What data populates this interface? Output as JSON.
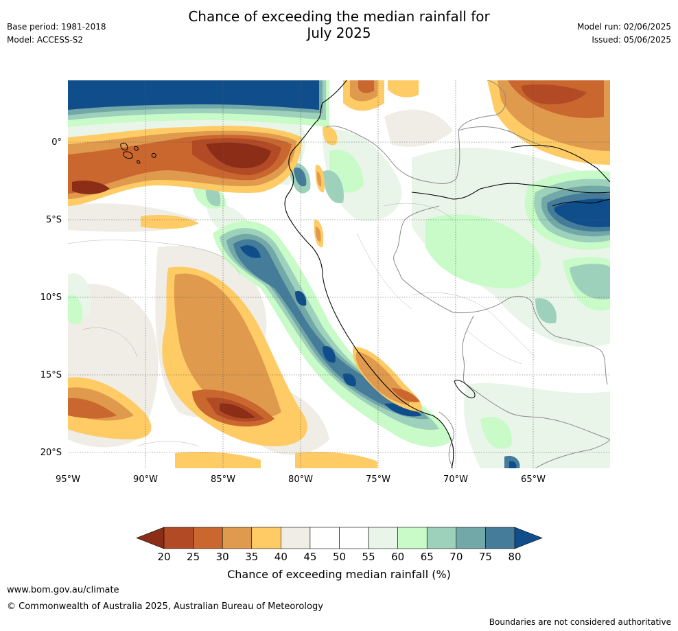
{
  "title": {
    "line1": "Chance of exceeding the median rainfall for",
    "line2": "July 2025"
  },
  "header_left": {
    "base_period": "Base period: 1981-2018",
    "model": "Model: ACCESS-S2"
  },
  "header_right": {
    "model_run": "Model run: 02/06/2025",
    "issued": "Issued: 05/06/2025"
  },
  "map": {
    "lon_range": [
      -95,
      -60
    ],
    "lat_range": [
      -21,
      4
    ],
    "lon_ticks": [
      "95°W",
      "90°W",
      "85°W",
      "80°W",
      "75°W",
      "70°W",
      "65°W"
    ],
    "lat_ticks": [
      "0°",
      "5°S",
      "10°S",
      "15°S",
      "20°S"
    ],
    "gridlines": true
  },
  "colorbar": {
    "label": "Chance of exceeding median rainfall (%)",
    "ticks": [
      "20",
      "25",
      "30",
      "35",
      "40",
      "45",
      "50",
      "55",
      "60",
      "65",
      "70",
      "75",
      "80"
    ],
    "under_color": "#8c2d18",
    "over_color": "#104e8b",
    "colors": [
      "#b24a25",
      "#c9672f",
      "#e09a4e",
      "#fecb65",
      "#f0ede6",
      "#ffffff",
      "#ffffff",
      "#e9f5e8",
      "#c8fbc8",
      "#9dd1bb",
      "#72a8a7",
      "#457c99"
    ]
  },
  "footer": {
    "url": "www.bom.gov.au/climate",
    "copyright": "© Commonwealth of Australia 2025, Australian Bureau of Meteorology",
    "disclaimer": "Boundaries are not considered authoritative"
  }
}
